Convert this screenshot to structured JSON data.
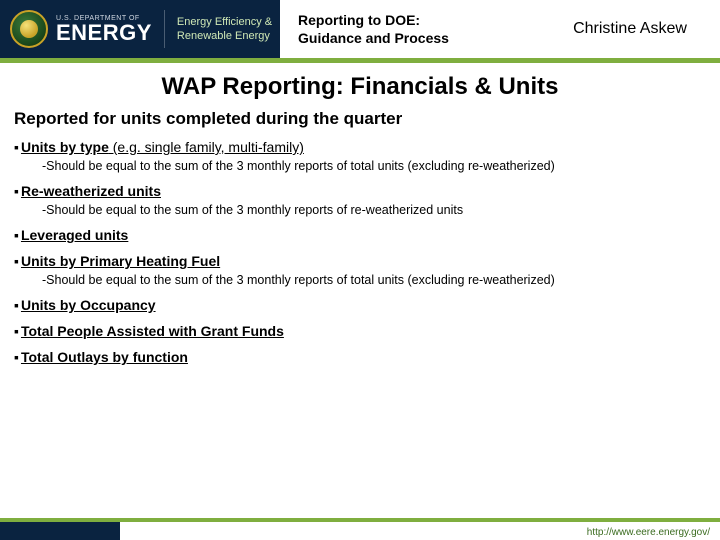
{
  "header": {
    "dept_line": "U.S. DEPARTMENT OF",
    "energy": "ENERGY",
    "eere_line1": "Energy Efficiency &",
    "eere_line2": "Renewable Energy",
    "center_line1": "Reporting to DOE:",
    "center_line2": "Guidance and Process",
    "author": "Christine Askew"
  },
  "title": "WAP Reporting: Financials & Units",
  "subhead": "Reported for units completed during the quarter",
  "bullets": [
    {
      "label": "Units by type",
      "paren": " (e.g. single family, multi-family)",
      "note": "-Should be equal to the sum of the 3 monthly reports of total units (excluding re-weatherized)"
    },
    {
      "label": "Re-weatherized units",
      "paren": "",
      "note": "-Should be equal to the sum of the 3 monthly reports of re-weatherized units"
    },
    {
      "label": "Leveraged units",
      "paren": "",
      "note": ""
    },
    {
      "label": "Units by Primary Heating Fuel",
      "paren": "",
      "note": "-Should be equal to the sum of the 3 monthly reports of total units (excluding re-weatherized)"
    },
    {
      "label": "Units by Occupancy",
      "paren": "",
      "note": ""
    },
    {
      "label": "Total People Assisted with Grant Funds",
      "paren": "",
      "note": ""
    },
    {
      "label": "Total Outlays by function",
      "paren": "",
      "note": ""
    }
  ],
  "footer_url": "http://www.eere.energy.gov/",
  "colors": {
    "navy": "#0a2340",
    "green": "#7fae3f",
    "eere_text": "#cfe8b5"
  }
}
